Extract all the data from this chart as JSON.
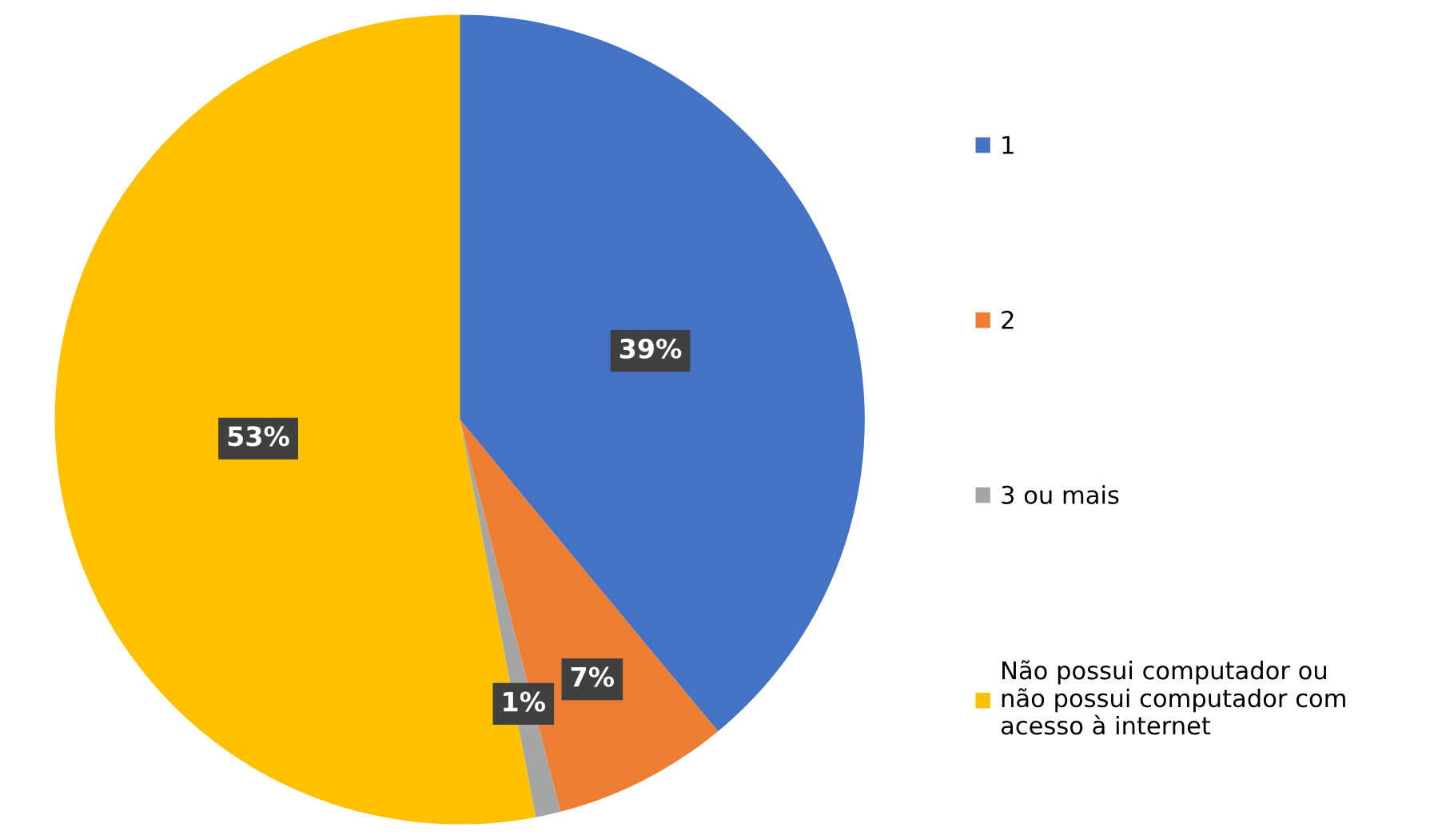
{
  "chart_data": {
    "type": "pie",
    "categories": [
      "1",
      "2",
      "3 ou mais",
      "Não possui computador ou não possui computador com acesso à internet"
    ],
    "values": [
      39,
      7,
      1,
      53
    ],
    "colors": [
      "#4472c4",
      "#ed7d31",
      "#a5a5a5",
      "#ffc000"
    ],
    "value_labels": [
      "39%",
      "7%",
      "1%",
      "53%"
    ],
    "legend": "right"
  }
}
